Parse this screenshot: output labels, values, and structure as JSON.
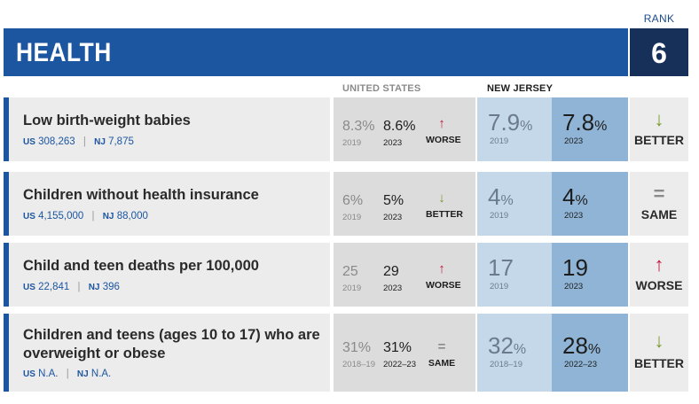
{
  "header": {
    "title": "HEALTH",
    "rank_label": "RANK",
    "rank_value": "6"
  },
  "columns": {
    "us": "UNITED STATES",
    "nj": "NEW JERSEY"
  },
  "colors": {
    "header_blue": "#1c56a0",
    "rank_navy": "#17305a",
    "worse_red": "#c2183f",
    "better_green": "#7a9a2a"
  },
  "rows": [
    {
      "title": "Low birth-weight babies",
      "us_prefix": "US",
      "us_count": "308,263",
      "nj_prefix": "NJ",
      "nj_count": "7,875",
      "us_old": "8.3%",
      "us_old_year": "2019",
      "us_new": "8.6%",
      "us_new_year": "2023",
      "us_arrow": "↑",
      "us_trend": "WORSE",
      "nj_old": "7.9",
      "nj_old_pct": "%",
      "nj_old_year": "2019",
      "nj_new": "7.8",
      "nj_new_pct": "%",
      "nj_new_year": "2023",
      "nj_arrow": "↓",
      "nj_trend": "BETTER"
    },
    {
      "title": "Children without health insurance",
      "us_prefix": "US",
      "us_count": "4,155,000",
      "nj_prefix": "NJ",
      "nj_count": "88,000",
      "us_old": "6%",
      "us_old_year": "2019",
      "us_new": "5%",
      "us_new_year": "2023",
      "us_arrow": "↓",
      "us_trend": "BETTER",
      "nj_old": "4",
      "nj_old_pct": "%",
      "nj_old_year": "2019",
      "nj_new": "4",
      "nj_new_pct": "%",
      "nj_new_year": "2023",
      "nj_arrow": "=",
      "nj_trend": "SAME"
    },
    {
      "title": "Child and teen deaths per 100,000",
      "us_prefix": "US",
      "us_count": "22,841",
      "nj_prefix": "NJ",
      "nj_count": "396",
      "us_old": "25",
      "us_old_year": "2019",
      "us_new": "29",
      "us_new_year": "2023",
      "us_arrow": "↑",
      "us_trend": "WORSE",
      "nj_old": "17",
      "nj_old_pct": "",
      "nj_old_year": "2019",
      "nj_new": "19",
      "nj_new_pct": "",
      "nj_new_year": "2023",
      "nj_arrow": "↑",
      "nj_trend": "WORSE"
    },
    {
      "title": "Children and teens (ages 10 to 17) who are overweight or obese",
      "us_prefix": "US",
      "us_count": "N.A.",
      "nj_prefix": "NJ",
      "nj_count": "N.A.",
      "us_old": "31%",
      "us_old_year": "2018–19",
      "us_new": "31%",
      "us_new_year": "2022–23",
      "us_arrow": "=",
      "us_trend": "SAME",
      "nj_old": "32",
      "nj_old_pct": "%",
      "nj_old_year": "2018–19",
      "nj_new": "28",
      "nj_new_pct": "%",
      "nj_new_year": "2022–23",
      "nj_arrow": "↓",
      "nj_trend": "BETTER"
    }
  ]
}
